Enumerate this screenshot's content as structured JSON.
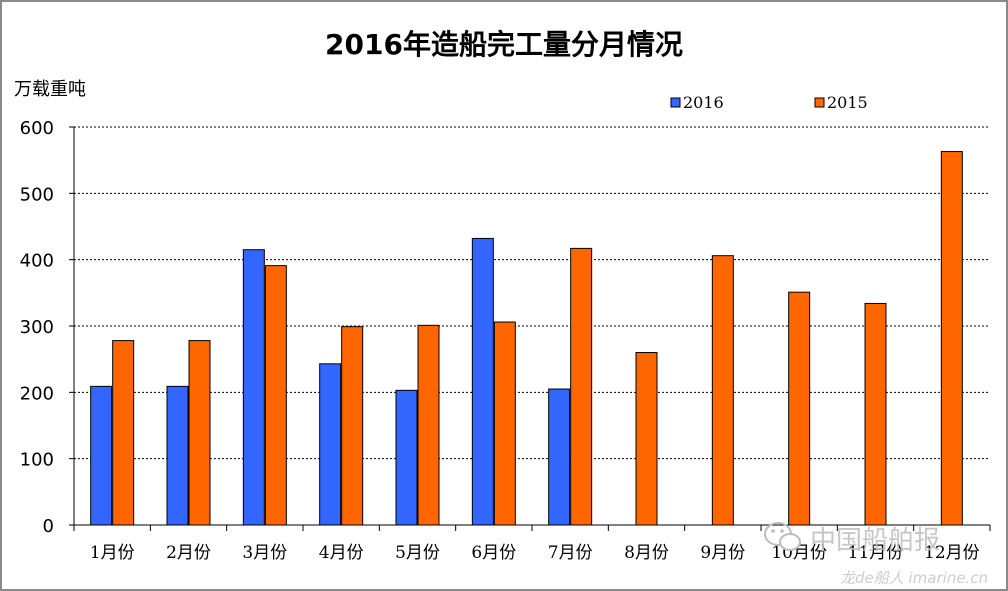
{
  "chart_data": {
    "type": "bar",
    "title": "2016年造船完工量分月情况",
    "ylabel": "万载重吨",
    "xlabel": "",
    "categories": [
      "1月份",
      "2月份",
      "3月份",
      "4月份",
      "5月份",
      "6月份",
      "7月份",
      "8月份",
      "9月份",
      "10月份",
      "11月份",
      "12月份"
    ],
    "series": [
      {
        "name": "2016",
        "color": "#3366ff",
        "values": [
          209,
          209,
          415,
          243,
          203,
          432,
          205,
          null,
          null,
          null,
          null,
          null
        ]
      },
      {
        "name": "2015",
        "color": "#ff6600",
        "values": [
          278,
          278,
          391,
          299,
          301,
          306,
          417,
          260,
          406,
          351,
          334,
          563
        ]
      }
    ],
    "ylim": [
      0,
      600
    ],
    "yticks": [
      0,
      100,
      200,
      300,
      400,
      500,
      600
    ],
    "grid": true,
    "legend_position": "top-right"
  },
  "watermark": {
    "logo_text": "中国船舶报",
    "site_text": "龙de船人 imarine.cn"
  }
}
